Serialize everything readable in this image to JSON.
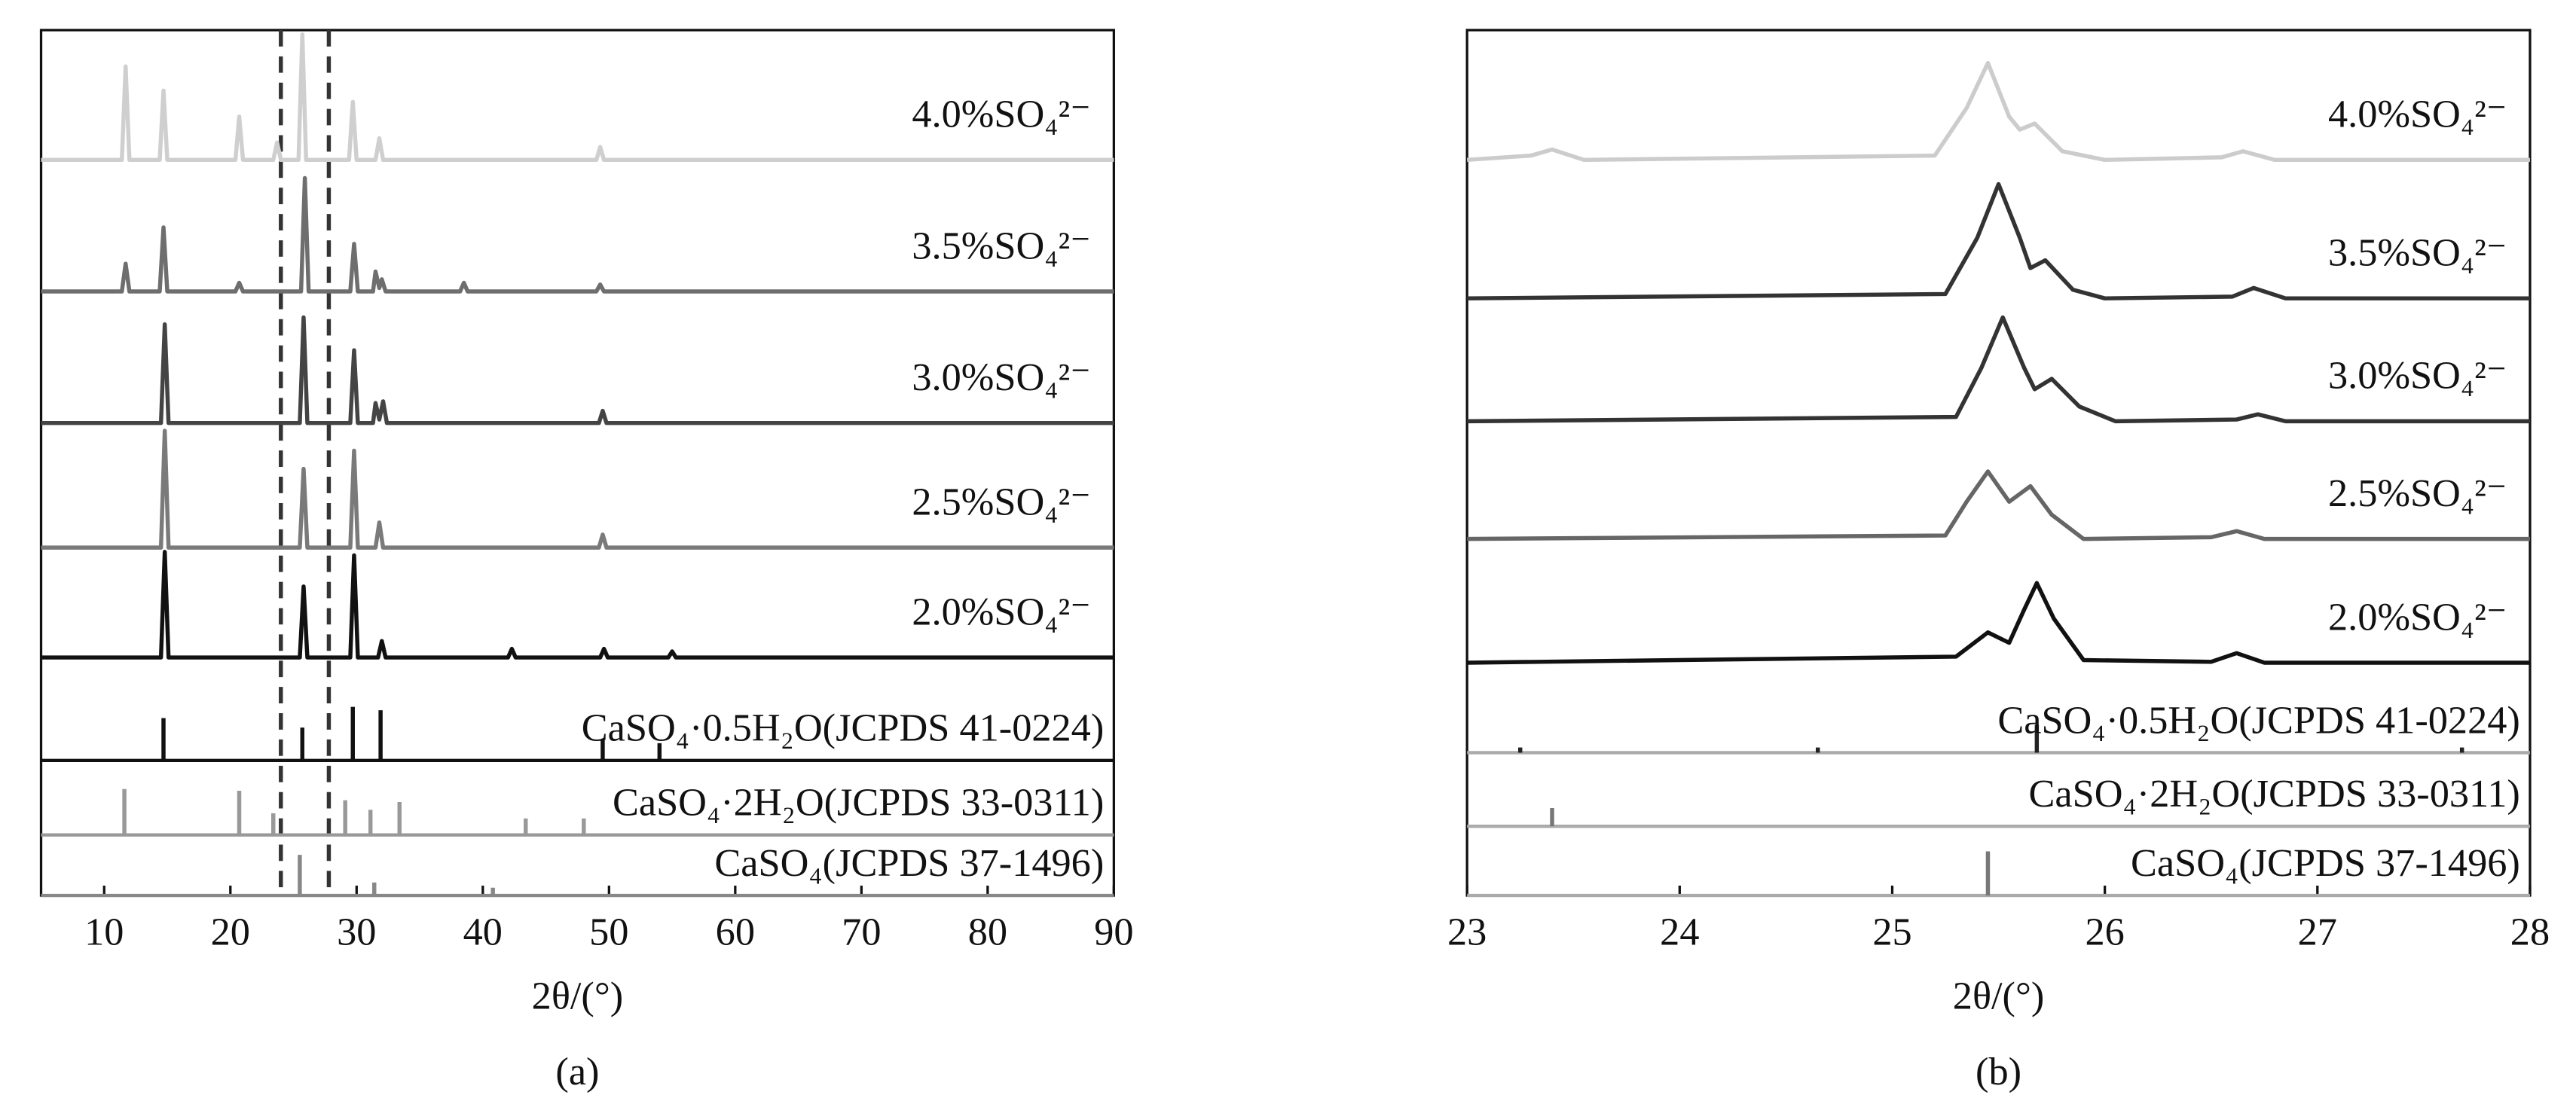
{
  "chart_data": [
    {
      "type": "line",
      "xlabel": "2θ/(°)",
      "panel_label": "(a)",
      "xlim": [
        5,
        90
      ],
      "xticks": [
        10,
        20,
        30,
        40,
        50,
        60,
        70,
        80,
        90
      ],
      "ylim": [
        0,
        100
      ],
      "marker_lines": [
        24.0,
        27.8
      ],
      "series": [
        {
          "name": "4.0%SO₄²⁻",
          "color": "#cfcfcf",
          "x": [
            5,
            11.4,
            11.7,
            12.0,
            14.4,
            14.7,
            15.0,
            20.4,
            20.7,
            21.0,
            23.4,
            23.7,
            24.0,
            25.4,
            25.7,
            26.0,
            29.4,
            29.7,
            30.0,
            31.5,
            31.8,
            32.1,
            49.0,
            49.3,
            49.6,
            90
          ],
          "values": [
            85,
            85,
            95.8,
            85,
            85,
            93,
            85,
            85,
            90,
            85,
            85,
            87,
            85,
            85,
            99.5,
            85,
            85,
            91.7,
            85,
            85,
            87.5,
            85,
            85,
            86.5,
            85,
            85
          ]
        },
        {
          "name": "3.5%SO₄²⁻",
          "color": "#6e6e6e",
          "x": [
            5,
            11.4,
            11.7,
            12.0,
            14.4,
            14.7,
            15.0,
            20.4,
            20.7,
            21.0,
            25.6,
            25.9,
            26.2,
            29.5,
            29.8,
            30.1,
            31.3,
            31.5,
            31.8,
            32.0,
            32.3,
            38.2,
            38.5,
            38.8,
            49.0,
            49.3,
            49.6,
            90
          ],
          "values": [
            69.8,
            69.8,
            73,
            69.8,
            69.8,
            77.2,
            69.8,
            69.8,
            70.8,
            69.8,
            69.8,
            82.9,
            69.8,
            69.8,
            75.3,
            69.8,
            69.8,
            72.1,
            70.2,
            71.2,
            69.8,
            69.8,
            70.8,
            69.8,
            69.8,
            70.6,
            69.8,
            69.8
          ]
        },
        {
          "name": "3.0%SO₄²⁻",
          "color": "#444444",
          "x": [
            5,
            14.5,
            14.8,
            15.1,
            25.5,
            25.8,
            26.1,
            29.5,
            29.8,
            30.1,
            31.3,
            31.5,
            31.8,
            32.1,
            32.4,
            49.2,
            49.5,
            49.8,
            90
          ],
          "values": [
            54.6,
            54.6,
            66,
            54.6,
            54.6,
            66.8,
            54.6,
            54.6,
            63,
            54.6,
            54.6,
            56.9,
            55,
            57.1,
            54.6,
            54.6,
            56,
            54.6,
            54.6
          ]
        },
        {
          "name": "2.5%SO₄²⁻",
          "color": "#7a7a7a",
          "x": [
            5,
            14.5,
            14.8,
            15.1,
            25.5,
            25.8,
            26.1,
            29.5,
            29.8,
            30.1,
            31.5,
            31.8,
            32.1,
            49.2,
            49.5,
            49.8,
            90
          ],
          "values": [
            40.2,
            40.2,
            53.7,
            40.2,
            40.2,
            49.3,
            40.2,
            40.2,
            51.4,
            40.2,
            40.2,
            43.1,
            40.2,
            40.2,
            41.7,
            40.2,
            40.2
          ]
        },
        {
          "name": "2.0%SO₄²⁻",
          "color": "#111111",
          "x": [
            5,
            14.5,
            14.8,
            15.1,
            25.5,
            25.8,
            26.1,
            29.5,
            29.8,
            30.1,
            31.7,
            32.0,
            32.3,
            42.0,
            42.3,
            42.6,
            49.3,
            49.6,
            49.9,
            54.7,
            55.0,
            55.3,
            90
          ],
          "values": [
            27.5,
            27.5,
            39.7,
            27.5,
            27.5,
            35.7,
            27.5,
            27.5,
            39.3,
            27.5,
            27.5,
            29.4,
            27.5,
            27.5,
            28.5,
            27.5,
            27.5,
            28.5,
            27.5,
            27.5,
            28.2,
            27.5,
            27.5
          ]
        },
        {
          "name": "CaSO₄·0.5H₂O(JCPDS 41-0224)",
          "color": "#111111",
          "style": "stick",
          "baseline": 15.6,
          "x": [
            14.7,
            25.7,
            29.7,
            31.9,
            49.5,
            54.0
          ],
          "values": [
            20.5,
            19.4,
            21.8,
            21.4,
            18,
            17.6
          ]
        },
        {
          "name": "CaSO₄·2H₂O(JCPDS 33-0311)",
          "color": "#999999",
          "style": "stick",
          "baseline": 7.0,
          "x": [
            11.6,
            20.7,
            23.4,
            29.1,
            31.1,
            33.4,
            43.4,
            48.0
          ],
          "values": [
            12.3,
            12.1,
            9.5,
            11,
            9.9,
            10.8,
            8.9,
            8.9
          ]
        },
        {
          "name": "CaSO₄(JCPDS 37-1496)",
          "color": "#888888",
          "style": "stick",
          "baseline": 0,
          "x": [
            25.5,
            31.4,
            40.8
          ],
          "values": [
            4.7,
            1.5,
            0.9
          ]
        }
      ]
    },
    {
      "type": "line",
      "xlabel": "2θ/(°)",
      "panel_label": "(b)",
      "xlim": [
        23,
        28
      ],
      "xticks": [
        23,
        24,
        25,
        26,
        27,
        28
      ],
      "ylim": [
        0,
        100
      ],
      "series": [
        {
          "name": "4.0%SO₄²⁻",
          "color": "#cccccc",
          "x": [
            23,
            23.3,
            23.4,
            23.55,
            25.2,
            25.35,
            25.45,
            25.55,
            25.6,
            25.67,
            25.8,
            26.0,
            26.55,
            26.65,
            26.8,
            28
          ],
          "values": [
            85,
            85.5,
            86.2,
            85,
            85.5,
            91,
            96.2,
            90,
            88.5,
            89.2,
            86,
            85,
            85.3,
            86,
            85,
            85
          ]
        },
        {
          "name": "3.5%SO₄²⁻",
          "color": "#333333",
          "x": [
            23,
            25.25,
            25.4,
            25.5,
            25.6,
            25.65,
            25.72,
            25.85,
            26.0,
            26.6,
            26.7,
            26.85,
            28
          ],
          "values": [
            69,
            69.5,
            76,
            82.2,
            76,
            72.5,
            73.4,
            70,
            69,
            69.2,
            70.2,
            69,
            69
          ]
        },
        {
          "name": "3.0%SO₄²⁻",
          "color": "#333333",
          "x": [
            23,
            25.3,
            25.42,
            25.52,
            25.62,
            25.67,
            25.75,
            25.88,
            26.05,
            26.62,
            26.72,
            26.85,
            28
          ],
          "values": [
            54.8,
            55.3,
            61,
            66.8,
            61,
            58.5,
            59.7,
            56.5,
            54.8,
            55,
            55.6,
            54.8,
            54.8
          ]
        },
        {
          "name": "2.5%SO₄²⁻",
          "color": "#666666",
          "x": [
            23,
            25.25,
            25.35,
            25.45,
            25.55,
            25.65,
            25.75,
            25.9,
            26.5,
            26.62,
            26.75,
            28
          ],
          "values": [
            41.2,
            41.6,
            45.5,
            49,
            45.5,
            47.3,
            44,
            41.2,
            41.4,
            42.1,
            41.2,
            41.2
          ]
        },
        {
          "name": "2.0%SO₄²⁻",
          "color": "#111111",
          "x": [
            23,
            25.3,
            25.45,
            25.55,
            25.62,
            25.68,
            25.76,
            25.9,
            26.5,
            26.62,
            26.75,
            28
          ],
          "values": [
            26.9,
            27.6,
            30.4,
            29.2,
            33,
            36.1,
            32,
            27.2,
            27,
            28,
            26.9,
            26.9
          ]
        },
        {
          "name": "CaSO₄·0.5H₂O(JCPDS 41-0224)",
          "color": "#222222",
          "style": "stick",
          "baseline": 16.5,
          "x": [
            23.25,
            24.65,
            25.68,
            27.68
          ],
          "values": [
            17.1,
            17.1,
            19.7,
            17.1
          ]
        },
        {
          "name": "CaSO₄·2H₂O(JCPDS 33-0311)",
          "color": "#777777",
          "style": "stick",
          "baseline": 8.0,
          "x": [
            23.4
          ],
          "values": [
            10.1
          ]
        },
        {
          "name": "CaSO₄(JCPDS 37-1496)",
          "color": "#777777",
          "style": "stick",
          "baseline": 0,
          "x": [
            25.45
          ],
          "values": [
            5.1
          ]
        }
      ]
    }
  ]
}
